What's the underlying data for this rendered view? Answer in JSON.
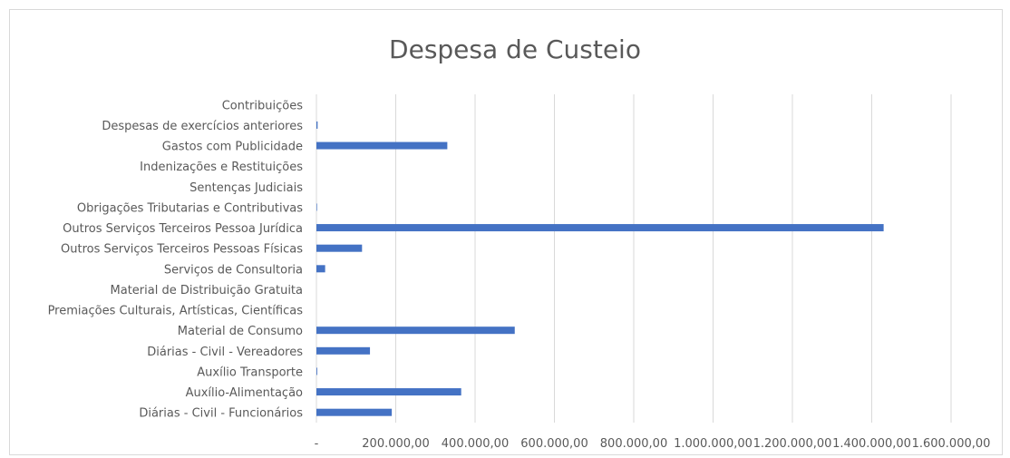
{
  "chart_data": {
    "type": "bar",
    "orientation": "horizontal",
    "title": "Despesa de Custeio",
    "xlabel": "",
    "ylabel": "",
    "categories": [
      "Contribuições",
      "Despesas de exercícios anteriores",
      "Gastos com Publicidade",
      "Indenizações e Restituições",
      "Sentenças Judiciais",
      "Obrigações Tributarias e Contributivas",
      "Outros Serviços Terceiros Pessoa Jurídica",
      "Outros Serviços Terceiros Pessoas Físicas",
      "Serviços de Consultoria",
      "Material de Distribuição Gratuita",
      "Premiações Culturais, Artísticas, Científicas",
      "Material de Consumo",
      "Diárias - Civil - Vereadores",
      "Auxílio Transporte",
      "Auxílio-Alimentação",
      "Diárias - Civil - Funcionários"
    ],
    "values": [
      0,
      3000,
      330000,
      0,
      0,
      1500,
      1430000,
      115000,
      22000,
      0,
      0,
      500000,
      135000,
      2000,
      365000,
      190000
    ],
    "xlim": [
      0,
      1600000
    ],
    "xticks": [
      0,
      200000,
      400000,
      600000,
      800000,
      1000000,
      1200000,
      1400000,
      1600000
    ],
    "xtick_labels": [
      "-",
      "200.000,00",
      "400.000,00",
      "600.000,00",
      "800.000,00",
      "1.000.000,00",
      "1.200.000,00",
      "1.400.000,00",
      "1.600.000,00"
    ],
    "grid": "vertical",
    "legend": "none",
    "bar_color": "#4472c4",
    "grid_color": "#d9d9d9",
    "text_color": "#595959"
  }
}
